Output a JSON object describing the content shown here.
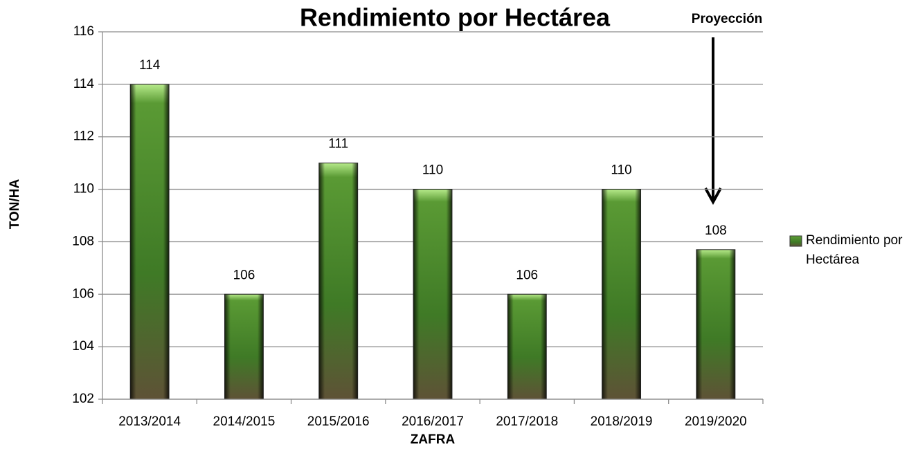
{
  "chart_data": {
    "type": "bar",
    "title": "Rendimiento por Hectárea",
    "annotation": "Proyección",
    "x_label": "ZAFRA",
    "y_label": "TON/HA",
    "categories": [
      "2013/2014",
      "2014/2015",
      "2015/2016",
      "2016/2017",
      "2017/2018",
      "2018/2019",
      "2019/2020"
    ],
    "series": [
      {
        "name": "Rendimiento por Hectárea",
        "color": "#4a8a2a",
        "values": [
          114,
          106,
          111,
          110,
          106,
          110,
          107.7
        ],
        "value_labels": [
          "114",
          "106",
          "111",
          "110",
          "106",
          "110",
          "108"
        ]
      }
    ],
    "ylim": [
      102,
      116
    ],
    "yticks": [
      102,
      104,
      106,
      108,
      110,
      112,
      114,
      116
    ],
    "grid": true,
    "legend": "right"
  }
}
